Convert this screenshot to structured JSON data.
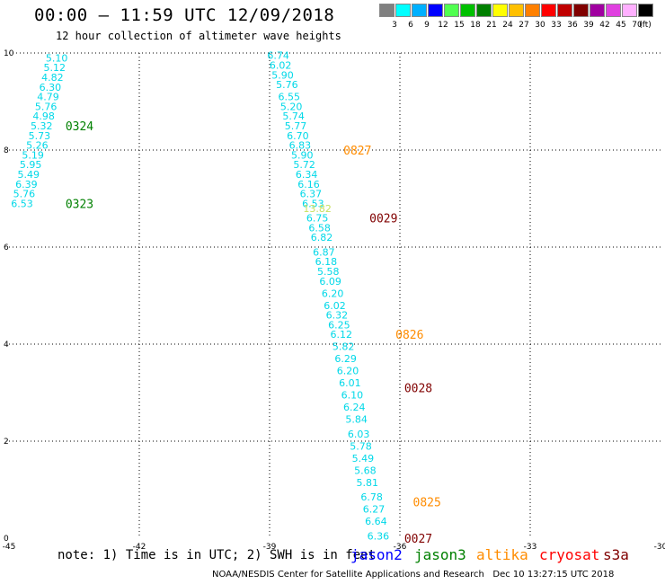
{
  "header": {
    "title": "00:00 – 11:59 UTC 12/09/2018",
    "subtitle": "12 hour collection of altimeter wave heights"
  },
  "color_scale": {
    "unit": "(ft)",
    "bins": [
      {
        "label": "3",
        "color": "#808080"
      },
      {
        "label": "6",
        "color": "#00ffff"
      },
      {
        "label": "9",
        "color": "#00b0ff"
      },
      {
        "label": "12",
        "color": "#0000ff"
      },
      {
        "label": "15",
        "color": "#50ff50"
      },
      {
        "label": "18",
        "color": "#00c000"
      },
      {
        "label": "21",
        "color": "#008000"
      },
      {
        "label": "24",
        "color": "#ffff00"
      },
      {
        "label": "27",
        "color": "#ffc000"
      },
      {
        "label": "30",
        "color": "#ff8000"
      },
      {
        "label": "33",
        "color": "#ff0000"
      },
      {
        "label": "36",
        "color": "#c00000"
      },
      {
        "label": "39",
        "color": "#800000"
      },
      {
        "label": "42",
        "color": "#a000a0"
      },
      {
        "label": "45",
        "color": "#e040e0"
      },
      {
        "label": "70",
        "color": "#ffb0ff"
      },
      {
        "label": "",
        "color": "#000000"
      }
    ]
  },
  "axes": {
    "x_ticks": [
      "-45",
      "-42",
      "-39",
      "-36",
      "-33",
      "-30"
    ],
    "x_values": [
      -45,
      -42,
      -39,
      -36,
      -33,
      -30
    ],
    "y_ticks": [
      "0",
      "2",
      "4",
      "6",
      "8",
      "10"
    ],
    "y_values": [
      0,
      2,
      4,
      6,
      8,
      10
    ]
  },
  "tracks": [
    {
      "name": "jason3-track-west",
      "color": "#00d8e8",
      "points": [
        {
          "lon": -43.9,
          "lat": 9.9,
          "v": "5.10"
        },
        {
          "lon": -43.95,
          "lat": 9.7,
          "v": "5.12"
        },
        {
          "lon": -44.0,
          "lat": 9.5,
          "v": "4.82"
        },
        {
          "lon": -44.05,
          "lat": 9.3,
          "v": "6.30"
        },
        {
          "lon": -44.1,
          "lat": 9.1,
          "v": "4.79"
        },
        {
          "lon": -44.15,
          "lat": 8.9,
          "v": "5.76"
        },
        {
          "lon": -44.2,
          "lat": 8.7,
          "v": "4.98"
        },
        {
          "lon": -44.25,
          "lat": 8.5,
          "v": "5.32"
        },
        {
          "lon": -44.3,
          "lat": 8.3,
          "v": "5.73"
        },
        {
          "lon": -44.35,
          "lat": 8.1,
          "v": "5.26"
        },
        {
          "lon": -44.45,
          "lat": 7.9,
          "v": "5.19"
        },
        {
          "lon": -44.5,
          "lat": 7.7,
          "v": "5.95"
        },
        {
          "lon": -44.55,
          "lat": 7.5,
          "v": "5.49"
        },
        {
          "lon": -44.6,
          "lat": 7.3,
          "v": "6.39"
        },
        {
          "lon": -44.65,
          "lat": 7.1,
          "v": "5.76"
        },
        {
          "lon": -44.7,
          "lat": 6.9,
          "v": "6.53"
        }
      ]
    },
    {
      "name": "main-track",
      "color": "#00d8e8",
      "points": [
        {
          "lon": -38.8,
          "lat": 9.95,
          "v": "6.74"
        },
        {
          "lon": -38.75,
          "lat": 9.75,
          "v": "6.02"
        },
        {
          "lon": -38.7,
          "lat": 9.55,
          "v": "5.90"
        },
        {
          "lon": -38.6,
          "lat": 9.35,
          "v": "5.76"
        },
        {
          "lon": -38.55,
          "lat": 9.1,
          "v": "6.55"
        },
        {
          "lon": -38.5,
          "lat": 8.9,
          "v": "5.20"
        },
        {
          "lon": -38.45,
          "lat": 8.7,
          "v": "5.74"
        },
        {
          "lon": -38.4,
          "lat": 8.5,
          "v": "5.77"
        },
        {
          "lon": -38.35,
          "lat": 8.3,
          "v": "6.70"
        },
        {
          "lon": -38.3,
          "lat": 8.1,
          "v": "6.83"
        },
        {
          "lon": -38.25,
          "lat": 7.9,
          "v": "5.90"
        },
        {
          "lon": -38.2,
          "lat": 7.7,
          "v": "5.72"
        },
        {
          "lon": -38.15,
          "lat": 7.5,
          "v": "6.34"
        },
        {
          "lon": -38.1,
          "lat": 7.3,
          "v": "6.16"
        },
        {
          "lon": -38.05,
          "lat": 7.1,
          "v": "6.37"
        },
        {
          "lon": -38.0,
          "lat": 6.9,
          "v": "6.53"
        },
        {
          "lon": -37.9,
          "lat": 6.6,
          "v": "6.75"
        },
        {
          "lon": -37.85,
          "lat": 6.4,
          "v": "6.58"
        },
        {
          "lon": -37.8,
          "lat": 6.2,
          "v": "6.82"
        },
        {
          "lon": -37.75,
          "lat": 5.9,
          "v": "6.87"
        },
        {
          "lon": -37.7,
          "lat": 5.7,
          "v": "6.18"
        },
        {
          "lon": -37.65,
          "lat": 5.5,
          "v": "5.58"
        },
        {
          "lon": -37.6,
          "lat": 5.3,
          "v": "6.09"
        },
        {
          "lon": -37.55,
          "lat": 5.05,
          "v": "6.20"
        },
        {
          "lon": -37.5,
          "lat": 4.8,
          "v": "6.02"
        },
        {
          "lon": -37.45,
          "lat": 4.6,
          "v": "6.32"
        },
        {
          "lon": -37.4,
          "lat": 4.4,
          "v": "6.25"
        },
        {
          "lon": -37.35,
          "lat": 4.2,
          "v": "6.12"
        },
        {
          "lon": -37.3,
          "lat": 3.95,
          "v": "5.82"
        },
        {
          "lon": -37.25,
          "lat": 3.7,
          "v": "6.29"
        },
        {
          "lon": -37.2,
          "lat": 3.45,
          "v": "6.20"
        },
        {
          "lon": -37.15,
          "lat": 3.2,
          "v": "6.01"
        },
        {
          "lon": -37.1,
          "lat": 2.95,
          "v": "6.10"
        },
        {
          "lon": -37.05,
          "lat": 2.7,
          "v": "6.24"
        },
        {
          "lon": -37.0,
          "lat": 2.45,
          "v": "5.84"
        },
        {
          "lon": -36.95,
          "lat": 2.15,
          "v": "6.03"
        },
        {
          "lon": -36.9,
          "lat": 1.9,
          "v": "5.78"
        },
        {
          "lon": -36.85,
          "lat": 1.65,
          "v": "5.49"
        },
        {
          "lon": -36.8,
          "lat": 1.4,
          "v": "5.68"
        },
        {
          "lon": -36.75,
          "lat": 1.15,
          "v": "5.81"
        },
        {
          "lon": -36.65,
          "lat": 0.85,
          "v": "6.78"
        },
        {
          "lon": -36.6,
          "lat": 0.6,
          "v": "6.27"
        },
        {
          "lon": -36.55,
          "lat": 0.35,
          "v": "6.64"
        },
        {
          "lon": -36.5,
          "lat": 0.05,
          "v": "6.36"
        }
      ]
    }
  ],
  "single_points": [
    {
      "lon": -37.9,
      "lat": 6.8,
      "v": "13.82",
      "color": "#c8e060"
    }
  ],
  "time_labels": [
    {
      "text": "0324",
      "lon": -43.7,
      "lat": 8.5,
      "color": "#008000"
    },
    {
      "text": "0323",
      "lon": -43.7,
      "lat": 6.9,
      "color": "#008000"
    },
    {
      "text": "0827",
      "lon": -37.3,
      "lat": 8.0,
      "color": "#ff8c00"
    },
    {
      "text": "0029",
      "lon": -36.7,
      "lat": 6.6,
      "color": "#800000"
    },
    {
      "text": "0826",
      "lon": -36.1,
      "lat": 4.2,
      "color": "#ff8c00"
    },
    {
      "text": "0028",
      "lon": -35.9,
      "lat": 3.1,
      "color": "#800000"
    },
    {
      "text": "0825",
      "lon": -35.7,
      "lat": 0.75,
      "color": "#ff8c00"
    },
    {
      "text": "0027",
      "lon": -35.9,
      "lat": 0.0,
      "color": "#800000"
    }
  ],
  "note": "note: 1) Time is in UTC; 2) SWH is in feet",
  "satellites": [
    {
      "name": "jason2",
      "color": "#0000ff"
    },
    {
      "name": "jason3",
      "color": "#008000"
    },
    {
      "name": "altika",
      "color": "#ff8c00"
    },
    {
      "name": "cryosat",
      "color": "#ff0000"
    },
    {
      "name": "s3a",
      "color": "#800000"
    }
  ],
  "footer": "NOAA/NESDIS Center for Satellite Applications and Research   Dec 10 13:27:15 UTC 2018"
}
